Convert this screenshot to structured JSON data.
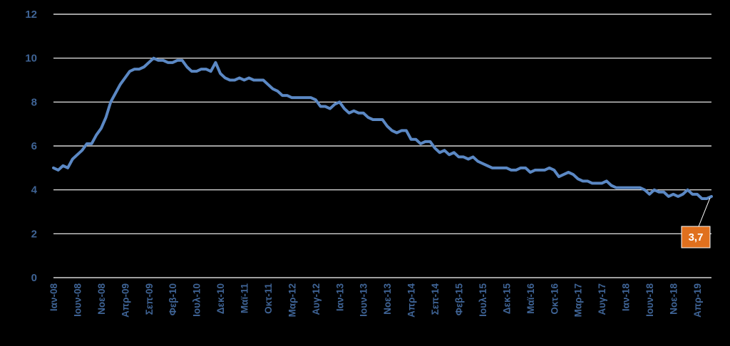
{
  "chart_data": {
    "type": "line",
    "title": "",
    "xlabel": "",
    "ylabel": "",
    "ylim": [
      0,
      12
    ],
    "yticks": [
      "0",
      "2",
      "4",
      "6",
      "8",
      "10",
      "12"
    ],
    "grid": true,
    "colors": {
      "line": "#5b88c4",
      "callout": "#e0701e",
      "tick_text": "#3f6496",
      "grid": "#ffffff",
      "background": "#000000"
    },
    "xtick_labels": [
      "Ιαν-08",
      "Ιουν-08",
      "Νοε-08",
      "Απρ-09",
      "Σεπ-09",
      "Φεβ-10",
      "Ιουλ-10",
      "Δεκ-10",
      "Μαϊ-11",
      "Οκτ-11",
      "Μαρ-12",
      "Αυγ-12",
      "Ιαν-13",
      "Ιουν-13",
      "Νοε-13",
      "Απρ-14",
      "Σεπ-14",
      "Φεβ-15",
      "Ιουλ-15",
      "Δεκ-15",
      "Μαϊ-16",
      "Οκτ-16",
      "Μαρ-17",
      "Αυγ-17",
      "Ιαν-18",
      "Ιουν-18",
      "Νοε-18",
      "Απρ-19"
    ],
    "annotation": {
      "label": "3,7",
      "value": 3.7
    },
    "series": [
      {
        "values": [
          5.0,
          4.9,
          5.1,
          5.0,
          5.4,
          5.6,
          5.8,
          6.1,
          6.1,
          6.5,
          6.8,
          7.3,
          8.0,
          8.4,
          8.8,
          9.1,
          9.4,
          9.5,
          9.5,
          9.6,
          9.8,
          10.0,
          9.9,
          9.9,
          9.8,
          9.8,
          9.9,
          9.9,
          9.6,
          9.4,
          9.4,
          9.5,
          9.5,
          9.4,
          9.8,
          9.3,
          9.1,
          9.0,
          9.0,
          9.1,
          9.0,
          9.1,
          9.0,
          9.0,
          9.0,
          8.8,
          8.6,
          8.5,
          8.3,
          8.3,
          8.2,
          8.2,
          8.2,
          8.2,
          8.2,
          8.1,
          7.8,
          7.8,
          7.7,
          7.9,
          8.0,
          7.7,
          7.5,
          7.6,
          7.5,
          7.5,
          7.3,
          7.2,
          7.2,
          7.2,
          6.9,
          6.7,
          6.6,
          6.7,
          6.7,
          6.3,
          6.3,
          6.1,
          6.2,
          6.2,
          5.9,
          5.7,
          5.8,
          5.6,
          5.7,
          5.5,
          5.5,
          5.4,
          5.5,
          5.3,
          5.2,
          5.1,
          5.0,
          5.0,
          5.0,
          5.0,
          4.9,
          4.9,
          5.0,
          5.0,
          4.8,
          4.9,
          4.9,
          4.9,
          5.0,
          4.9,
          4.6,
          4.7,
          4.8,
          4.7,
          4.5,
          4.4,
          4.4,
          4.3,
          4.3,
          4.3,
          4.4,
          4.2,
          4.1,
          4.1,
          4.1,
          4.1,
          4.1,
          4.1,
          4.0,
          3.8,
          4.0,
          3.9,
          3.9,
          3.7,
          3.8,
          3.7,
          3.8,
          4.0,
          3.8,
          3.8,
          3.6,
          3.6,
          3.7
        ]
      }
    ]
  }
}
